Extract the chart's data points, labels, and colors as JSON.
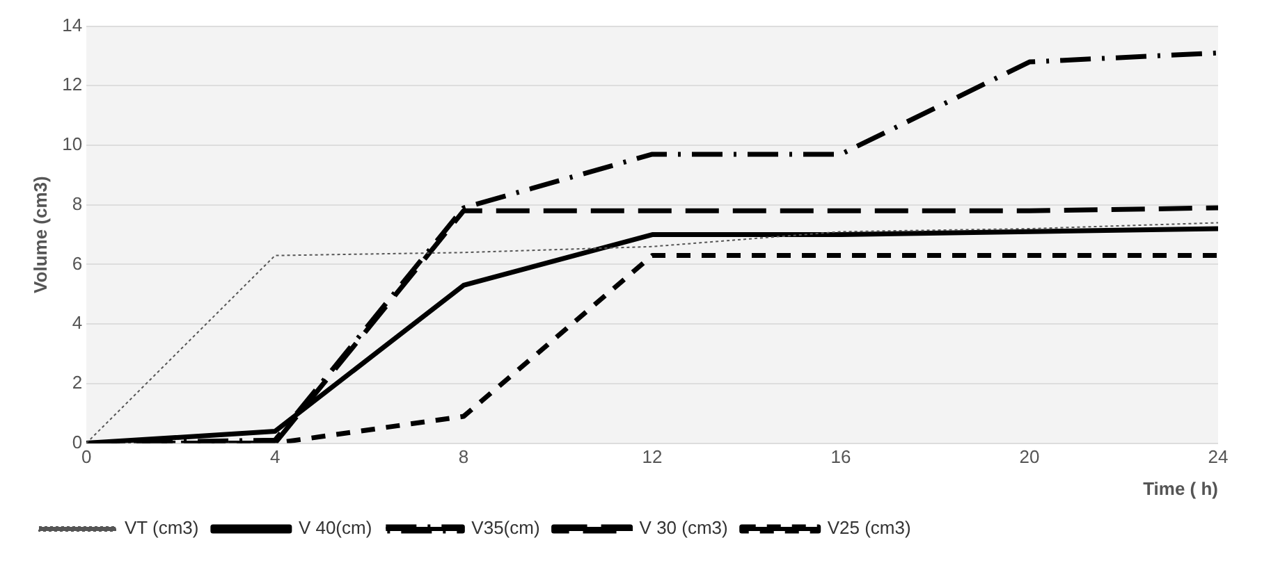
{
  "chart_data": {
    "type": "line",
    "xlabel": "Time ( h)",
    "ylabel": "Volume (cm3)",
    "x": [
      0,
      4,
      8,
      12,
      16,
      20,
      24
    ],
    "series": [
      {
        "name": "VT (cm3)",
        "color": "#555555",
        "line_style": "dotted",
        "values": [
          0,
          6.3,
          6.4,
          6.6,
          7.1,
          7.2,
          7.4
        ]
      },
      {
        "name": "V 40(cm)",
        "color": "#000000",
        "line_style": "solid",
        "values": [
          0,
          0.4,
          5.3,
          7.0,
          7.0,
          7.1,
          7.2
        ]
      },
      {
        "name": "V35(cm)",
        "color": "#000000",
        "line_style": "dashed",
        "values": [
          0,
          0.1,
          7.9,
          9.7,
          9.7,
          12.8,
          13.1
        ]
      },
      {
        "name": "V 30 (cm3)",
        "color": "#000000",
        "line_style": "dashed",
        "values": [
          0,
          0,
          7.8,
          7.8,
          7.8,
          7.8,
          7.9
        ]
      },
      {
        "name": "V25 (cm3)",
        "color": "#000000",
        "line_style": "dashed",
        "values": [
          0,
          0,
          0.9,
          6.3,
          6.3,
          6.3,
          6.3
        ]
      }
    ],
    "xlim": [
      0,
      24
    ],
    "xticks": [
      0,
      4,
      8,
      12,
      16,
      20,
      24
    ],
    "ylim": [
      0,
      14
    ],
    "yticks": [
      0,
      2,
      4,
      6,
      8,
      10,
      12,
      14
    ],
    "grid": "y",
    "legend": "bottom",
    "marker": "none"
  }
}
